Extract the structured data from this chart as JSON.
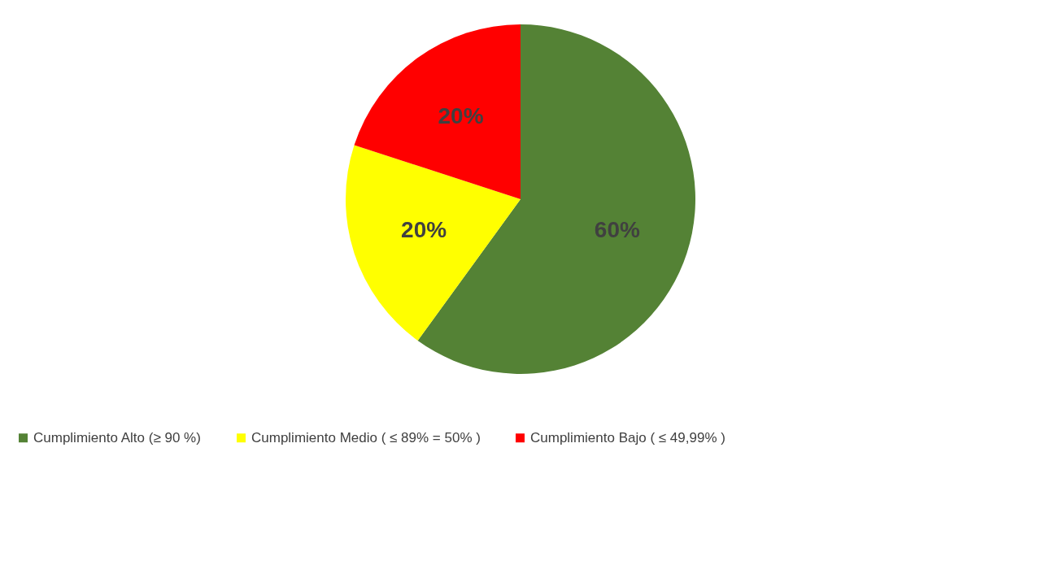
{
  "chart_data": {
    "type": "pie",
    "categories": [
      "Cumplimiento Alto (≥ 90 %)",
      "Cumplimiento Medio ( ≤ 89% = 50% )",
      "Cumplimiento Bajo ( ≤ 49,99% )"
    ],
    "values": [
      60,
      20,
      20
    ],
    "colors": [
      "#548235",
      "#ffff00",
      "#ff0000"
    ],
    "value_labels": [
      "60%",
      "20%",
      "20%"
    ],
    "legend": "bottom"
  }
}
